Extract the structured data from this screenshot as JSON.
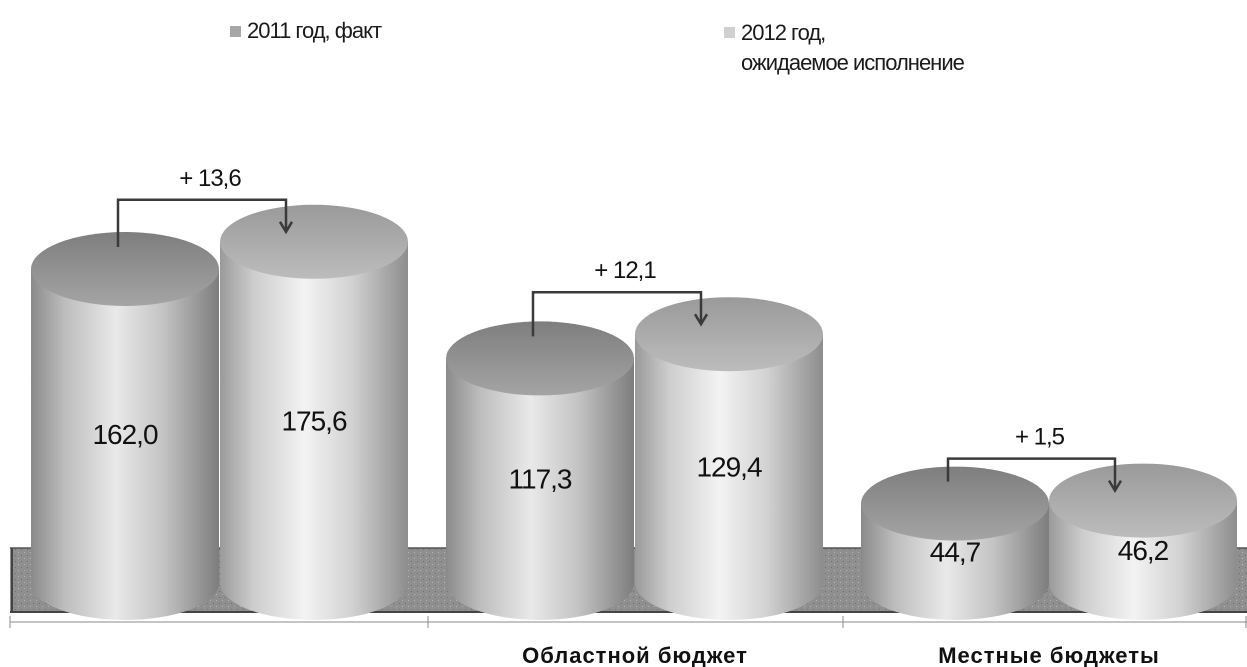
{
  "chart_data": {
    "type": "bar",
    "bar_style": "3d-cylinder",
    "categories": [
      "",
      "Областной бюджет",
      "Местные бюджеты"
    ],
    "series": [
      {
        "name": "2011 год, факт",
        "values": [
          162.0,
          117.3,
          44.7
        ],
        "value_labels": [
          "162,0",
          "117,3",
          "44,7"
        ]
      },
      {
        "name": "2012 год,\nожидаемое исполнение",
        "values": [
          175.6,
          129.4,
          46.2
        ],
        "value_labels": [
          "175,6",
          "129,4",
          "46,2"
        ]
      }
    ],
    "annotations": [
      "+ 13,6",
      "+ 12,1",
      "+ 1,5"
    ],
    "legend_position": "top",
    "grid": false,
    "colors": {
      "series_1": "#a6a6a6",
      "series_2": "#d0d0d0",
      "floor": "#8c8c8c",
      "text": "#111111"
    }
  }
}
